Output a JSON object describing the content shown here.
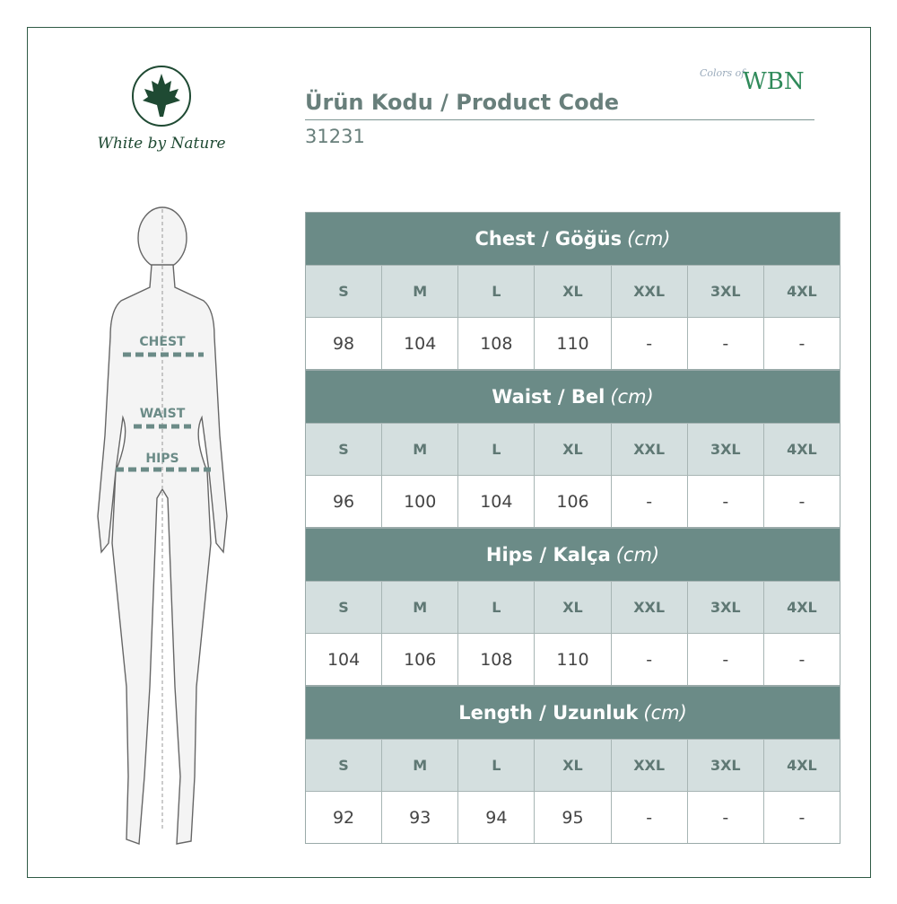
{
  "brand": {
    "logo_text": "White by Nature",
    "secondary_logo": "Colors of WBN"
  },
  "header": {
    "title": "Ürün Kodu / Product Code",
    "product_code": "31231"
  },
  "figure": {
    "labels": [
      "CHEST",
      "WAIST",
      "HIPS"
    ]
  },
  "colors": {
    "header": "#6b8b87",
    "size_row": "#d4dfdf",
    "text": "#687f7b",
    "brand": "#1f4a33"
  },
  "sizes": [
    "S",
    "M",
    "L",
    "XL",
    "XXL",
    "3XL",
    "4XL"
  ],
  "sections": [
    {
      "title": "Chest / Göğüs",
      "unit": "(cm)",
      "values": [
        "98",
        "104",
        "108",
        "110",
        "-",
        "-",
        "-"
      ]
    },
    {
      "title": "Waist / Bel",
      "unit": "(cm)",
      "values": [
        "96",
        "100",
        "104",
        "106",
        "-",
        "-",
        "-"
      ]
    },
    {
      "title": "Hips / Kalça",
      "unit": "(cm)",
      "values": [
        "104",
        "106",
        "108",
        "110",
        "-",
        "-",
        "-"
      ]
    },
    {
      "title": "Length / Uzunluk",
      "unit": "(cm)",
      "values": [
        "92",
        "93",
        "94",
        "95",
        "-",
        "-",
        "-"
      ]
    }
  ]
}
